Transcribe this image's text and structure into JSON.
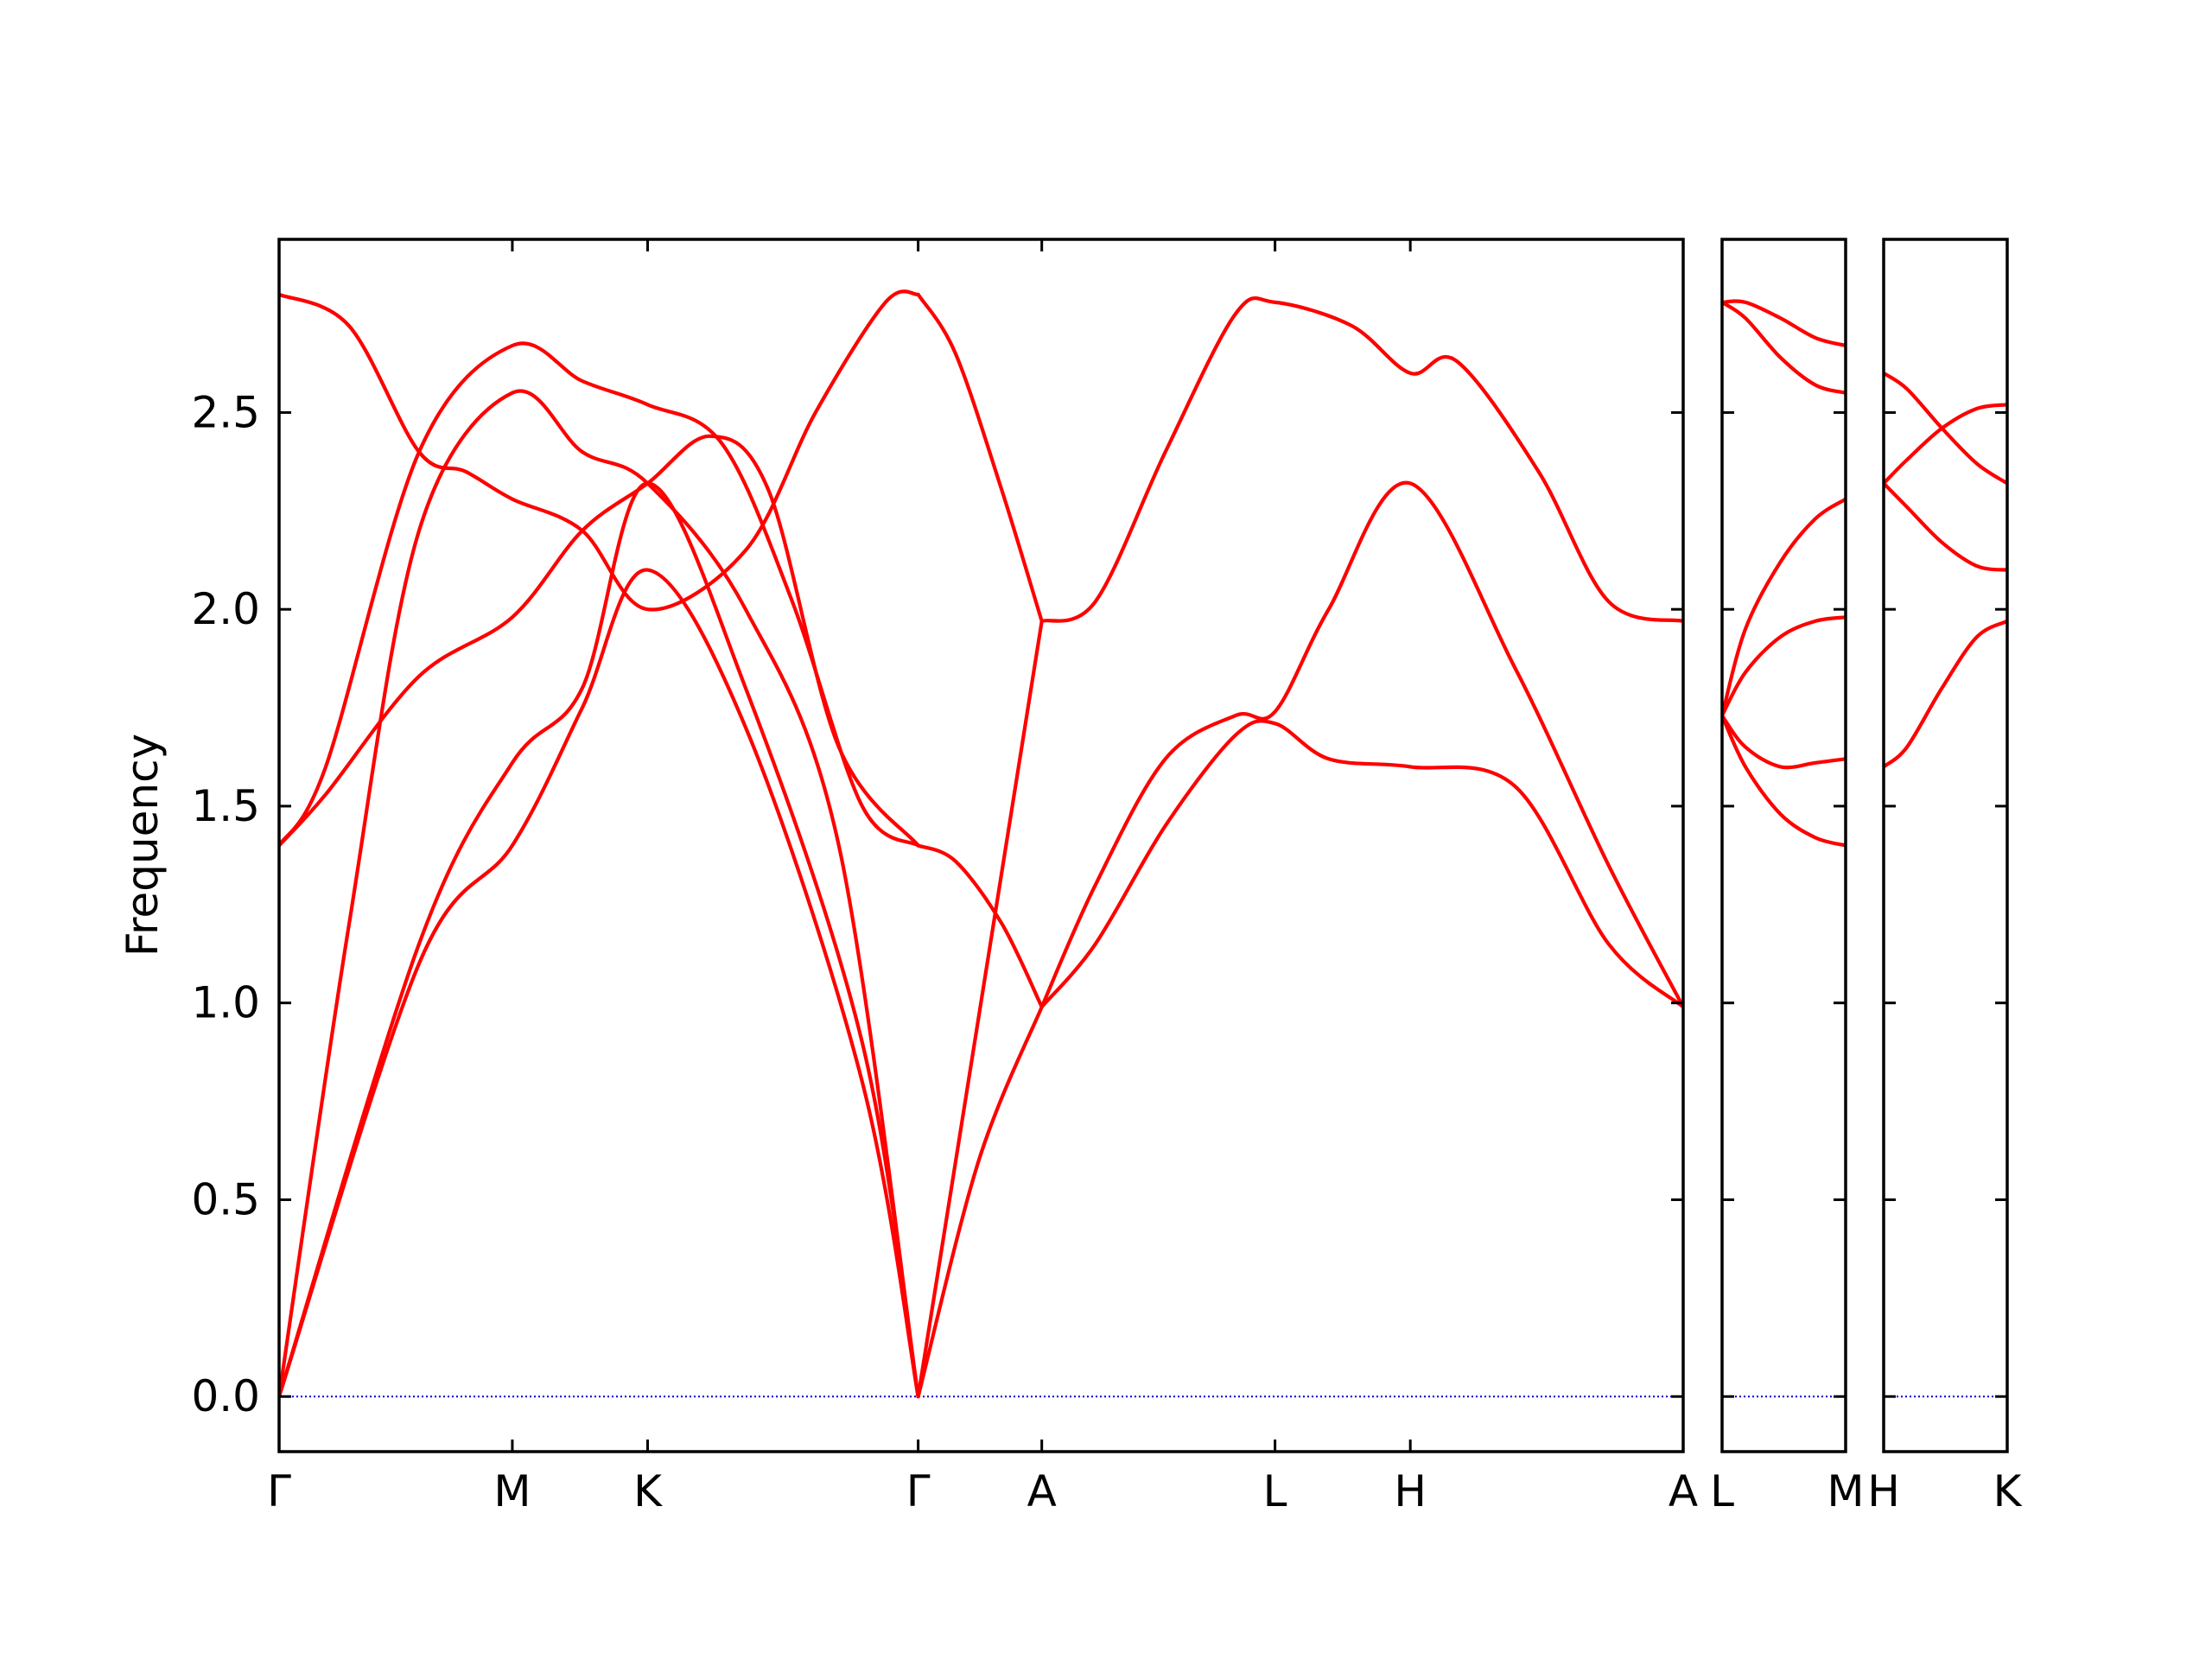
{
  "chart_data": {
    "type": "line",
    "ylabel": "Frequency",
    "ylim": [
      -0.14,
      2.94
    ],
    "yticks": [
      0.0,
      0.5,
      1.0,
      1.5,
      2.0,
      2.5
    ],
    "ytick_labels": [
      "0.0",
      "0.5",
      "1.0",
      "1.5",
      "2.0",
      "2.5"
    ],
    "line_color": "#ff0000",
    "zero_line_color": "#0000cc",
    "panels": [
      {
        "id": "main",
        "x": [
          0,
          1,
          1.58,
          2.74,
          3.27,
          4.27,
          4.85,
          6.02
        ],
        "x_tick_labels": [
          "Γ",
          "M",
          "K",
          "Γ",
          "A",
          "L",
          "H",
          "A"
        ],
        "series": [
          {
            "x": [
              0,
              0.6,
              1.0,
              1.3,
              1.58,
              2.0,
              2.5,
              2.74
            ],
            "y": [
              0,
              1.1,
              1.4,
              1.75,
              2.1,
              1.7,
              0.8,
              0
            ]
          },
          {
            "x": [
              0,
              0.6,
              1.0,
              1.3,
              1.58,
              2.0,
              2.5,
              2.74
            ],
            "y": [
              0,
              1.15,
              1.61,
              1.8,
              2.32,
              1.8,
              0.9,
              0
            ]
          },
          {
            "x": [
              0,
              0.2,
              0.6,
              1.0,
              1.3,
              1.58,
              1.9,
              2.2,
              2.5,
              2.74
            ],
            "y": [
              1.4,
              1.6,
              2.4,
              2.67,
              2.58,
              2.52,
              2.42,
              2.02,
              1.5,
              1.4
            ]
          },
          {
            "x": [
              0,
              0.2,
              0.6,
              1.0,
              1.3,
              1.58,
              1.85,
              2.1,
              2.4,
              2.74
            ],
            "y": [
              1.4,
              1.53,
              1.83,
              1.98,
              2.2,
              2.32,
              2.44,
              2.3,
              1.65,
              1.4
            ]
          },
          {
            "x": [
              0,
              0.3,
              0.6,
              1.0,
              1.3,
              1.58,
              2.0,
              2.4,
              2.74
            ],
            "y": [
              0,
              1.2,
              2.2,
              2.55,
              2.4,
              2.32,
              2.0,
              1.4,
              0
            ]
          },
          {
            "x": [
              0,
              0.3,
              0.6,
              0.8,
              1.0,
              1.3,
              1.58,
              2.0,
              2.3,
              2.6,
              2.74
            ],
            "y": [
              2.8,
              2.72,
              2.4,
              2.35,
              2.28,
              2.2,
              2.0,
              2.15,
              2.5,
              2.78,
              2.8
            ]
          },
          {
            "x": [
              2.74,
              2.9,
              3.1,
              3.27
            ],
            "y": [
              1.4,
              1.36,
              1.2,
              0.99
            ]
          },
          {
            "x": [
              2.74,
              2.9,
              3.1,
              3.27
            ],
            "y": [
              2.8,
              2.65,
              2.3,
              1.97
            ]
          },
          {
            "x": [
              2.74,
              3.27
            ],
            "y": [
              0,
              1.97
            ]
          },
          {
            "x": [
              2.74,
              3.0,
              3.27
            ],
            "y": [
              0,
              0.6,
              0.99
            ]
          },
          {
            "x": [
              3.27,
              3.5,
              3.8,
              4.1,
              4.27,
              4.5,
              4.85,
              5.3,
              5.7,
              6.02
            ],
            "y": [
              0.99,
              1.3,
              1.62,
              1.73,
              1.74,
              2.0,
              2.32,
              1.85,
              1.35,
              0.99
            ]
          },
          {
            "x": [
              3.27,
              3.5,
              3.8,
              4.1,
              4.27,
              4.5,
              4.85,
              5.3,
              5.7,
              6.02
            ],
            "y": [
              0.99,
              1.15,
              1.45,
              1.68,
              1.71,
              1.62,
              1.6,
              1.55,
              1.15,
              0.99
            ]
          },
          {
            "x": [
              3.27,
              3.5,
              3.8,
              4.1,
              4.27,
              4.6,
              4.85,
              5.05,
              5.4,
              5.7,
              6.02
            ],
            "y": [
              1.97,
              2.02,
              2.4,
              2.75,
              2.78,
              2.72,
              2.6,
              2.63,
              2.35,
              2.02,
              1.97
            ]
          }
        ]
      },
      {
        "id": "L-M",
        "x": [
          0,
          0.53
        ],
        "x_tick_labels": [
          "L",
          "M"
        ],
        "series": [
          {
            "x": [
              0,
              0.1,
              0.25,
              0.4,
              0.53
            ],
            "y": [
              1.73,
              1.95,
              2.12,
              2.23,
              2.28
            ]
          },
          {
            "x": [
              0,
              0.1,
              0.25,
              0.4,
              0.53
            ],
            "y": [
              1.73,
              1.84,
              1.93,
              1.97,
              1.98
            ]
          },
          {
            "x": [
              0,
              0.1,
              0.25,
              0.4,
              0.53
            ],
            "y": [
              1.73,
              1.65,
              1.6,
              1.61,
              1.62
            ]
          },
          {
            "x": [
              0,
              0.1,
              0.25,
              0.4,
              0.53
            ],
            "y": [
              1.73,
              1.6,
              1.48,
              1.42,
              1.4
            ]
          },
          {
            "x": [
              0,
              0.1,
              0.25,
              0.4,
              0.53
            ],
            "y": [
              2.78,
              2.78,
              2.74,
              2.69,
              2.67
            ]
          },
          {
            "x": [
              0,
              0.1,
              0.25,
              0.4,
              0.53
            ],
            "y": [
              2.78,
              2.74,
              2.64,
              2.57,
              2.55
            ]
          }
        ]
      },
      {
        "id": "H-K",
        "x": [
          0,
          0.53
        ],
        "x_tick_labels": [
          "H",
          "K"
        ],
        "series": [
          {
            "x": [
              0,
              0.1,
              0.25,
              0.4,
              0.53
            ],
            "y": [
              2.32,
              2.38,
              2.46,
              2.51,
              2.52
            ]
          },
          {
            "x": [
              0,
              0.1,
              0.25,
              0.4,
              0.53
            ],
            "y": [
              2.32,
              2.26,
              2.17,
              2.11,
              2.1
            ]
          },
          {
            "x": [
              0,
              0.1,
              0.25,
              0.4,
              0.53
            ],
            "y": [
              2.6,
              2.56,
              2.46,
              2.37,
              2.32
            ]
          },
          {
            "x": [
              0,
              0.1,
              0.25,
              0.4,
              0.53
            ],
            "y": [
              1.6,
              1.65,
              1.8,
              1.93,
              1.97
            ]
          }
        ]
      }
    ]
  }
}
